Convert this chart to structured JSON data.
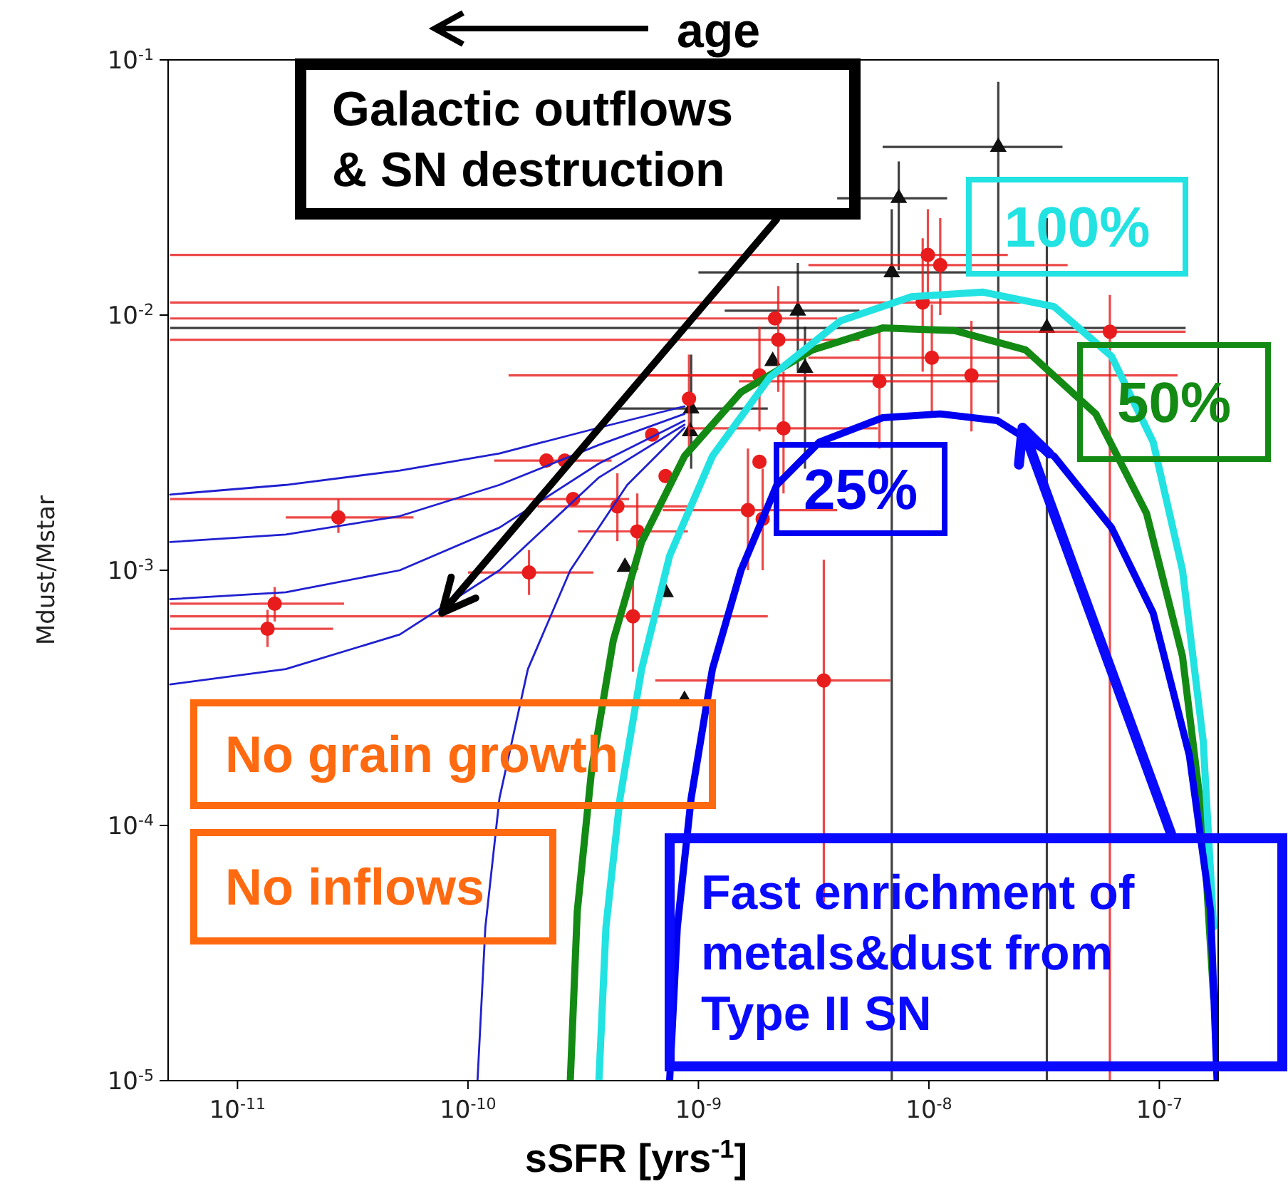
{
  "chart_data": {
    "type": "scatter",
    "xlabel": "sSFR [yrs$^{-1}$]",
    "ylabel": "Mdust/Mstar",
    "log": "xy",
    "grid": false,
    "legend": false,
    "xlim": [
      5e-12,
      1.8e-07
    ],
    "ylim": [
      1e-05,
      0.1
    ],
    "xticks": [
      {
        "value": 1e-11,
        "label": "10$^{-11}$"
      },
      {
        "value": 1e-10,
        "label": "10$^{-10}$"
      },
      {
        "value": 1e-09,
        "label": "10$^{-9}$"
      },
      {
        "value": 1e-08,
        "label": "10$^{-8}$"
      },
      {
        "value": 1e-07,
        "label": "10$^{-7}$"
      }
    ],
    "yticks": [
      {
        "value": 1e-05,
        "label": "10$^{-5}$"
      },
      {
        "value": 0.0001,
        "label": "10$^{-4}$"
      },
      {
        "value": 0.001,
        "label": "10$^{-3}$"
      },
      {
        "value": 0.01,
        "label": "10$^{-2}$"
      },
      {
        "value": 0.1,
        "label": "10$^{-1}$"
      }
    ],
    "annotations": [
      "age",
      {
        "text": "Galactic outflows & SN destruction",
        "x": 7.7e-11,
        "y": 0.00068
      },
      "No grain growth",
      "No inflows",
      {
        "text": "Fast enrichment of metals&dust from Type II SN",
        "x": 2.55e-08,
        "y": 0.00362
      }
    ],
    "series": [
      {
        "type": "line",
        "color": "#2020d0",
        "marker": "none",
        "x": [
          5.1e-12,
          1.62e-11,
          5.06e-11,
          1.37e-10,
          3.7e-10,
          8.7e-10
        ],
        "values": [
          0.00198,
          0.00216,
          0.00246,
          0.00287,
          0.00362,
          0.00439
        ]
      },
      {
        "type": "line",
        "color": "#2020d0",
        "marker": "none",
        "x": [
          5.1e-12,
          1.62e-11,
          5.06e-11,
          1.37e-10,
          3.7e-10,
          8.7e-10
        ],
        "values": [
          0.00129,
          0.00138,
          0.00163,
          0.00216,
          0.0031,
          0.0041
        ]
      },
      {
        "type": "line",
        "color": "#2020d0",
        "marker": "none",
        "x": [
          5.1e-12,
          1.62e-11,
          5.06e-11,
          1.37e-10,
          3.7e-10,
          8.7e-10
        ],
        "values": [
          0.00077,
          0.00082,
          0.001,
          0.00147,
          0.00262,
          0.00386
        ]
      },
      {
        "type": "line",
        "color": "#2020d0",
        "marker": "none",
        "x": [
          5.1e-12,
          1.62e-11,
          5.06e-11,
          1.37e-10,
          3.7e-10,
          8.7e-10
        ],
        "values": [
          0.000357,
          0.00041,
          0.00056,
          0.001,
          0.00231,
          0.00372
        ]
      },
      {
        "type": "line",
        "color": "#2020d0",
        "marker": "none",
        "x": [
          1.1e-10,
          1.19e-10,
          1.37e-10,
          1.82e-10,
          2.78e-10,
          4.91e-10,
          8.7e-10
        ],
        "values": [
          1e-05,
          4e-05,
          0.000128,
          0.00041,
          0.001,
          0.00216,
          0.00362
        ]
      },
      {
        "type": "line",
        "name": "50%",
        "color": "#138a13",
        "marker": "none",
        "x": [
          2.78e-10,
          2.98e-10,
          3.44e-10,
          4.27e-10,
          5.67e-10,
          8.7e-10,
          1.53e-09,
          3.12e-09,
          6.3e-09,
          1.29e-08,
          2.63e-08,
          5.3e-08,
          8.8e-08,
          1.26e-07,
          1.55e-07,
          1.72e-07
        ],
        "values": [
          1e-05,
          4.6e-05,
          0.000165,
          0.00053,
          0.00129,
          0.0028,
          0.00499,
          0.0073,
          0.0089,
          0.0087,
          0.0073,
          0.0041,
          0.00167,
          0.00046,
          9.9e-05,
          2.11e-05
        ]
      },
      {
        "type": "line",
        "name": "100%",
        "color": "#22e2e2",
        "marker": "none",
        "x": [
          3.7e-10,
          3.97e-10,
          4.57e-10,
          5.67e-10,
          7.5e-10,
          1.15e-09,
          2.04e-09,
          4.14e-09,
          8.4e-09,
          1.72e-08,
          3.49e-08,
          6.2e-08,
          9.4e-08,
          1.26e-07,
          1.55e-07,
          1.72e-07
        ],
        "values": [
          1e-05,
          4e-05,
          0.000128,
          0.00041,
          0.00114,
          0.0028,
          0.0057,
          0.0095,
          0.0118,
          0.0123,
          0.0108,
          0.0069,
          0.00318,
          0.001,
          0.000214,
          4e-05
        ]
      },
      {
        "type": "line",
        "name": "25%",
        "color": "#0000f0",
        "marker": "none",
        "x": [
          7.5e-10,
          8.1e-10,
          9.3e-10,
          1.15e-09,
          1.53e-09,
          2.19e-09,
          3.35e-09,
          6.3e-09,
          1.12e-08,
          1.98e-08,
          3.49e-08,
          6.2e-08,
          9.4e-08,
          1.35e-07,
          1.67e-07,
          1.78e-07
        ],
        "values": [
          1e-05,
          4e-05,
          0.000128,
          0.00041,
          0.001,
          0.00216,
          0.00318,
          0.00396,
          0.0041,
          0.00386,
          0.0028,
          0.00147,
          0.00068,
          0.000188,
          4.6e-05,
          1e-05
        ]
      },
      {
        "color": "#111111",
        "marker": "triangle",
        "x": [
          2e-08,
          7.4e-09,
          6.9e-09,
          2.7e-09,
          2.1e-09,
          2.9e-09,
          9.3e-10,
          9.2e-10,
          4.8e-10,
          7.2e-10,
          3.25e-08,
          8.7e-10
        ],
        "values": [
          0.0456,
          0.0287,
          0.0147,
          0.0104,
          0.0066,
          0.0062,
          0.0043,
          0.0035,
          0.00103,
          0.00082,
          0.0089,
          0.00031
        ],
        "xerrors": [
          [
            6.3e-09,
            3.8e-08
          ],
          [
            4e-09,
            1.2e-08
          ],
          [
            1e-09,
            1e-07
          ],
          [
            1.3e-09,
            5e-09
          ],
          null,
          null,
          [
            4.5e-10,
            2e-09
          ],
          null,
          null,
          null,
          [
            5.1e-12,
            1.3e-07
          ],
          null
        ],
        "errors": [
          [
            0.0041,
            0.082
          ],
          [
            0.015,
            0.04
          ],
          [
            1e-05,
            0.026
          ],
          [
            0.006,
            0.016
          ],
          null,
          [
            0.0025,
            0.009
          ],
          [
            0.0025,
            0.007
          ],
          null,
          null,
          null,
          [
            1e-05,
            0.024
          ],
          null
        ]
      },
      {
        "color": "#e81c1c",
        "marker": "circle",
        "x": [
          2.74e-11,
          1.45e-11,
          1.35e-11,
          2.19e-10,
          2.63e-10,
          2.86e-10,
          1.84e-10,
          4.45e-10,
          5.43e-10,
          7.2e-10,
          6.3e-10,
          9.1e-10,
          1.84e-09,
          2.34e-09,
          1.84e-09,
          1.64e-09,
          1.9e-09,
          2.15e-09,
          2.22e-09,
          9.4e-09,
          9.9e-09,
          1.12e-08,
          1.03e-08,
          6.1e-09,
          1.53e-08,
          6.1e-08,
          5.2e-10,
          3.5e-09
        ],
        "values": [
          0.00161,
          0.00074,
          0.00059,
          0.00269,
          0.00269,
          0.0019,
          0.00098,
          0.00178,
          0.00142,
          0.00234,
          0.0034,
          0.0047,
          0.0058,
          0.0036,
          0.00266,
          0.00172,
          0.00159,
          0.0097,
          0.008,
          0.0112,
          0.0172,
          0.0157,
          0.0068,
          0.0055,
          0.0058,
          0.0086,
          0.00066,
          0.00037
        ],
        "xerrors": [
          [
            1.62e-11,
            5.8e-11
          ],
          [
            5.1e-12,
            2.9e-11
          ],
          [
            5.1e-12,
            2.6e-11
          ],
          [
            1.3e-10,
            4.2e-10
          ],
          null,
          [
            5.1e-12,
            5e-10
          ],
          [
            1e-10,
            3.5e-10
          ],
          [
            2e-10,
            9e-10
          ],
          [
            3e-10,
            9e-10
          ],
          null,
          null,
          null,
          [
            6e-10,
            6e-09
          ],
          [
            9e-10,
            6e-09
          ],
          null,
          [
            7e-10,
            4e-09
          ],
          null,
          [
            5.1e-12,
            4e-09
          ],
          [
            5.1e-12,
            5e-09
          ],
          [
            5.1e-12,
            2.5e-08
          ],
          [
            5.1e-12,
            2.2e-08
          ],
          [
            3e-09,
            4e-08
          ],
          [
            3e-09,
            3e-08
          ],
          [
            1.5e-09,
            2e-08
          ],
          [
            1.5e-10,
            1.2e-07
          ],
          [
            2e-08,
            1.3e-07
          ],
          [
            5.1e-12,
            2e-09
          ],
          [
            6.5e-10,
            6.8e-09
          ]
        ],
        "errors": [
          [
            0.0014,
            0.0019
          ],
          [
            0.00063,
            0.00086
          ],
          [
            0.0005,
            0.0007
          ],
          null,
          null,
          null,
          [
            0.0008,
            0.0012
          ],
          [
            0.0013,
            0.0024
          ],
          [
            0.001,
            0.002
          ],
          null,
          null,
          [
            0.003,
            0.007
          ],
          [
            0.0035,
            0.009
          ],
          [
            0.002,
            0.006
          ],
          null,
          [
            0.001,
            0.003
          ],
          [
            0.001,
            0.0025
          ],
          null,
          [
            0.005,
            0.013
          ],
          [
            0.006,
            0.02
          ],
          [
            0.011,
            0.026
          ],
          [
            0.01,
            0.024
          ],
          [
            0.004,
            0.011
          ],
          [
            0.003,
            0.009
          ],
          [
            0.0035,
            0.0095
          ],
          [
            1e-05,
            0.012
          ],
          [
            0.0004,
            0.001
          ],
          [
            5e-05,
            0.0011
          ]
        ]
      }
    ]
  }
}
